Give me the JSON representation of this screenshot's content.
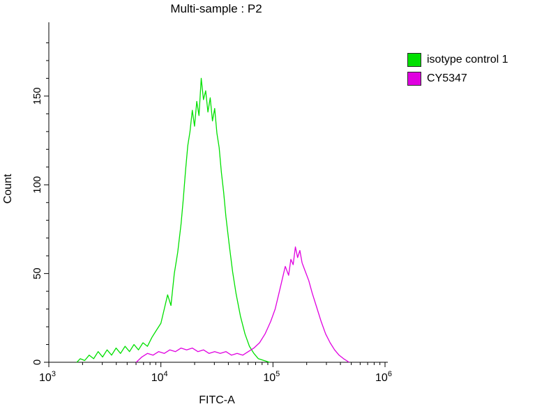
{
  "chart_data": {
    "type": "line",
    "title": "Multi-sample : P2",
    "xlabel": "FITC-A",
    "ylabel": "Count",
    "x_scale": "log",
    "xlim": [
      1000,
      1000000
    ],
    "ylim": [
      0,
      190
    ],
    "xticks": [
      1000,
      10000,
      100000,
      1000000
    ],
    "yticks": [
      0,
      50,
      100,
      150
    ],
    "yticks_minor": [
      10,
      20,
      30,
      40,
      60,
      70,
      80,
      90,
      110,
      120,
      130,
      140,
      160,
      170,
      180
    ],
    "grid": false,
    "legend_position": "outside-top-right",
    "legend": [
      {
        "label": "isotype control 1",
        "color": "#00e000"
      },
      {
        "label": "CY5347",
        "color": "#e000e0"
      }
    ],
    "series": [
      {
        "name": "isotype control 1",
        "color": "#00e000",
        "x_unit": "log10(FITC-A)",
        "points": [
          [
            3.25,
            0
          ],
          [
            3.28,
            2
          ],
          [
            3.32,
            1
          ],
          [
            3.36,
            4
          ],
          [
            3.4,
            2
          ],
          [
            3.44,
            6
          ],
          [
            3.48,
            3
          ],
          [
            3.52,
            7
          ],
          [
            3.56,
            4
          ],
          [
            3.6,
            8
          ],
          [
            3.64,
            5
          ],
          [
            3.68,
            9
          ],
          [
            3.72,
            6
          ],
          [
            3.76,
            10
          ],
          [
            3.8,
            7
          ],
          [
            3.84,
            11
          ],
          [
            3.88,
            9
          ],
          [
            3.92,
            14
          ],
          [
            3.96,
            18
          ],
          [
            4.0,
            22
          ],
          [
            4.03,
            30
          ],
          [
            4.06,
            38
          ],
          [
            4.09,
            32
          ],
          [
            4.12,
            50
          ],
          [
            4.15,
            62
          ],
          [
            4.18,
            78
          ],
          [
            4.2,
            92
          ],
          [
            4.22,
            108
          ],
          [
            4.24,
            122
          ],
          [
            4.26,
            130
          ],
          [
            4.28,
            142
          ],
          [
            4.3,
            133
          ],
          [
            4.32,
            147
          ],
          [
            4.34,
            139
          ],
          [
            4.36,
            160
          ],
          [
            4.38,
            148
          ],
          [
            4.4,
            153
          ],
          [
            4.42,
            141
          ],
          [
            4.44,
            149
          ],
          [
            4.46,
            136
          ],
          [
            4.48,
            143
          ],
          [
            4.5,
            129
          ],
          [
            4.52,
            121
          ],
          [
            4.54,
            107
          ],
          [
            4.56,
            96
          ],
          [
            4.58,
            82
          ],
          [
            4.61,
            66
          ],
          [
            4.64,
            51
          ],
          [
            4.67,
            39
          ],
          [
            4.71,
            26
          ],
          [
            4.75,
            16
          ],
          [
            4.79,
            9
          ],
          [
            4.83,
            5
          ],
          [
            4.87,
            2
          ],
          [
            4.92,
            1
          ],
          [
            4.97,
            0
          ]
        ]
      },
      {
        "name": "CY5347",
        "color": "#e000e0",
        "x_unit": "log10(FITC-A)",
        "points": [
          [
            3.78,
            0
          ],
          [
            3.83,
            3
          ],
          [
            3.88,
            5
          ],
          [
            3.93,
            4
          ],
          [
            3.98,
            6
          ],
          [
            4.03,
            5
          ],
          [
            4.08,
            7
          ],
          [
            4.13,
            6
          ],
          [
            4.18,
            8
          ],
          [
            4.23,
            7
          ],
          [
            4.28,
            8
          ],
          [
            4.33,
            6
          ],
          [
            4.38,
            7
          ],
          [
            4.43,
            5
          ],
          [
            4.48,
            6
          ],
          [
            4.53,
            5
          ],
          [
            4.58,
            6
          ],
          [
            4.63,
            4
          ],
          [
            4.68,
            5
          ],
          [
            4.73,
            4
          ],
          [
            4.78,
            6
          ],
          [
            4.83,
            8
          ],
          [
            4.88,
            11
          ],
          [
            4.93,
            16
          ],
          [
            4.98,
            23
          ],
          [
            5.02,
            30
          ],
          [
            5.05,
            38
          ],
          [
            5.08,
            46
          ],
          [
            5.11,
            54
          ],
          [
            5.14,
            49
          ],
          [
            5.16,
            58
          ],
          [
            5.18,
            55
          ],
          [
            5.2,
            65
          ],
          [
            5.22,
            59
          ],
          [
            5.24,
            63
          ],
          [
            5.26,
            56
          ],
          [
            5.29,
            51
          ],
          [
            5.32,
            46
          ],
          [
            5.35,
            39
          ],
          [
            5.39,
            31
          ],
          [
            5.43,
            23
          ],
          [
            5.47,
            16
          ],
          [
            5.51,
            11
          ],
          [
            5.55,
            7
          ],
          [
            5.59,
            4
          ],
          [
            5.63,
            2
          ],
          [
            5.68,
            0
          ]
        ]
      }
    ]
  }
}
